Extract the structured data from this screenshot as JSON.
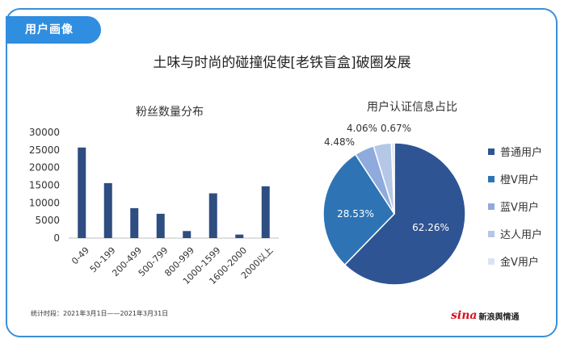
{
  "tag": "用户画像",
  "main_title": "土味与时尚的碰撞促使[老铁盲盒]破圈发展",
  "footnote": "统计时段：2021年3月1日——2021年3月31日",
  "logo": {
    "sina": "sina",
    "text": "新浪舆情通"
  },
  "chart_data": [
    {
      "type": "bar",
      "title": "粉丝数量分布",
      "categories": [
        "0-49",
        "50-199",
        "200-499",
        "500-799",
        "800-999",
        "1000-1599",
        "1600-2000",
        "2000以上"
      ],
      "values": [
        25700,
        15600,
        8500,
        6900,
        2000,
        12700,
        1000,
        14700
      ],
      "yticks": [
        0,
        5000,
        10000,
        15000,
        20000,
        25000,
        30000
      ],
      "ylim": [
        0,
        30000
      ],
      "grid": false,
      "color": "#2e4d80"
    },
    {
      "type": "pie",
      "title": "用户认证信息占比",
      "slices": [
        {
          "name": "普通用户",
          "value": 62.26,
          "label": "62.26%",
          "color": "#2e5494"
        },
        {
          "name": "橙V用户",
          "value": 28.53,
          "label": "28.53%",
          "color": "#2e74b5"
        },
        {
          "name": "蓝V用户",
          "value": 4.48,
          "label": "4.48%",
          "color": "#8faadc"
        },
        {
          "name": "达人用户",
          "value": 4.06,
          "label": "4.06%",
          "color": "#b4c7e7"
        },
        {
          "name": "金V用户",
          "value": 0.67,
          "label": "0.67%",
          "color": "#dae3f3"
        }
      ],
      "legend": "right"
    }
  ]
}
